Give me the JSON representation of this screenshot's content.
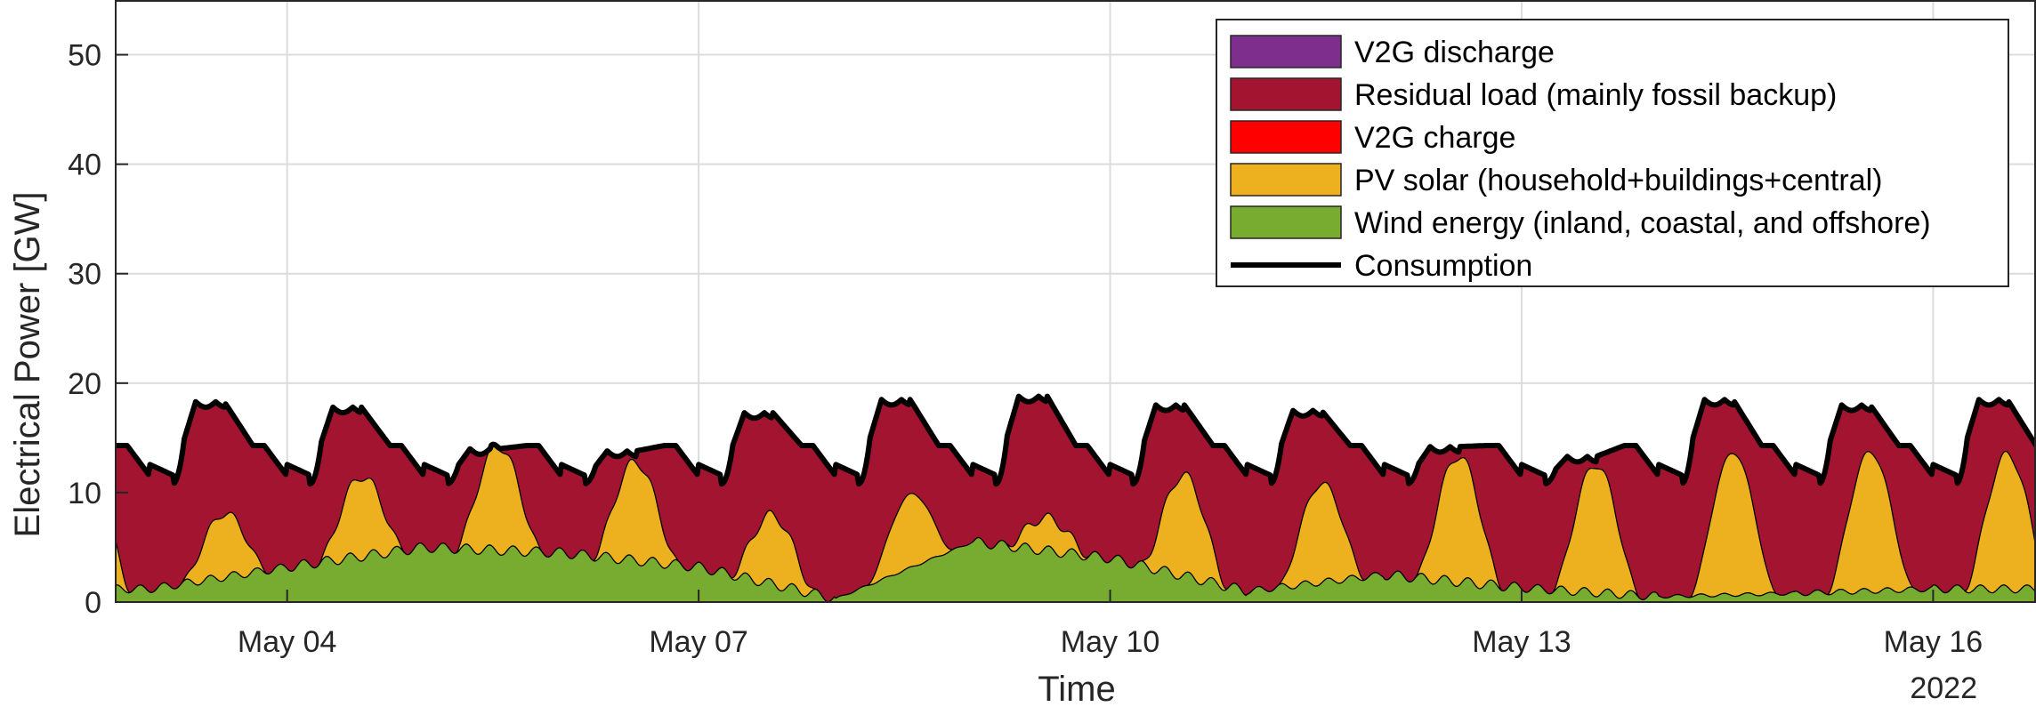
{
  "chart_data": {
    "type": "area",
    "xlabel": "Time",
    "ylabel": "Electrical Power [GW]",
    "year_label": "2022",
    "x_tick_labels": [
      "May 04",
      "May 07",
      "May 10",
      "May 13",
      "May 16"
    ],
    "x_tick_days": [
      4,
      7,
      10,
      13,
      16
    ],
    "xlim_days": [
      2.75,
      16.75
    ],
    "ylim": [
      0,
      55
    ],
    "y_ticks": [
      0,
      10,
      20,
      30,
      40,
      50
    ],
    "grid": true,
    "legend_position": "top-right",
    "stack_order": [
      "Wind energy (inland, coastal, and offshore)",
      "PV solar (household+buildings+central)",
      "Residual load (mainly fossil backup)"
    ],
    "legend": [
      {
        "name": "V2G discharge",
        "type": "patch",
        "color": "#7E2F8E"
      },
      {
        "name": "Residual load (mainly fossil backup)",
        "type": "patch",
        "color": "#A2142F"
      },
      {
        "name": "V2G charge",
        "type": "patch",
        "color": "#FF0000"
      },
      {
        "name": "PV solar (household+buildings+central)",
        "type": "patch",
        "color": "#EDB120"
      },
      {
        "name": "Wind energy (inland, coastal, and offshore)",
        "type": "patch",
        "color": "#77AC30"
      },
      {
        "name": "Consumption",
        "type": "line",
        "color": "#000000"
      }
    ],
    "days": [
      {
        "day": 3,
        "wind": 1.2,
        "pv": 7.0,
        "cons_peak": 18.3
      },
      {
        "day": 4,
        "wind": 3.2,
        "pv": 10.5,
        "cons_peak": 17.8
      },
      {
        "day": 5,
        "wind": 5.0,
        "pv": 14.5,
        "cons_peak": 14.0
      },
      {
        "day": 6,
        "wind": 4.5,
        "pv": 13.5,
        "cons_peak": 13.8
      },
      {
        "day": 7,
        "wind": 3.2,
        "pv": 9.5,
        "cons_peak": 17.3
      },
      {
        "day": 8,
        "wind": 0.3,
        "pv": 7.0,
        "cons_peak": 18.5
      },
      {
        "day": 9,
        "wind": 5.5,
        "pv": 8.5,
        "cons_peak": 18.8
      },
      {
        "day": 10,
        "wind": 4.0,
        "pv": 13.2,
        "cons_peak": 18.0
      },
      {
        "day": 11,
        "wind": 1.0,
        "pv": 10.0,
        "cons_peak": 17.5
      },
      {
        "day": 12,
        "wind": 2.5,
        "pv": 14.0,
        "cons_peak": 14.2
      },
      {
        "day": 13,
        "wind": 1.3,
        "pv": 13.0,
        "cons_peak": 13.3
      },
      {
        "day": 14,
        "wind": 0.5,
        "pv": 13.5,
        "cons_peak": 18.5
      },
      {
        "day": 15,
        "wind": 0.8,
        "pv": 13.5,
        "cons_peak": 18.0
      },
      {
        "day": 16,
        "wind": 1.2,
        "pv": 13.5,
        "cons_peak": 18.5
      }
    ]
  }
}
